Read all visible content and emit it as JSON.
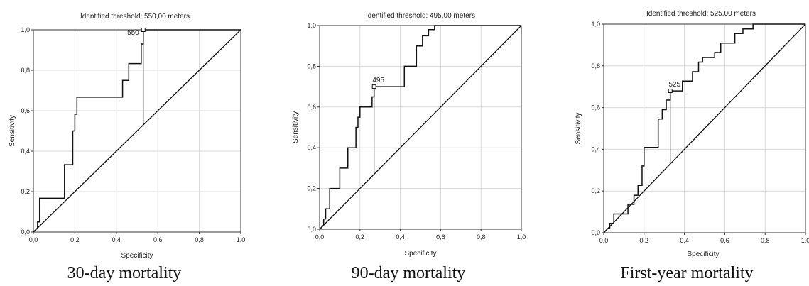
{
  "chart_data": [
    {
      "type": "line",
      "title": "Identified threshold: 550,00 meters",
      "xlabel": "Specificity",
      "ylabel": "Sensitivity",
      "caption": "30-day mortality",
      "xlim": [
        0,
        1
      ],
      "ylim": [
        0,
        1
      ],
      "xticks": [
        "0,0",
        "0,2",
        "0,4",
        "0,6",
        "0,8",
        "1,0"
      ],
      "yticks": [
        "0,0",
        "0,2",
        "0,4",
        "0,6",
        "0,8",
        "1,0"
      ],
      "grid": true,
      "threshold": {
        "label": "550",
        "x": 0.53,
        "y": 1.0
      },
      "series": [
        {
          "role": "roc",
          "x": [
            0,
            0.02,
            0.02,
            0.03,
            0.03,
            0.15,
            0.15,
            0.19,
            0.19,
            0.2,
            0.2,
            0.21,
            0.21,
            0.43,
            0.43,
            0.46,
            0.46,
            0.52,
            0.52,
            0.53,
            0.53,
            1.0
          ],
          "y": [
            0,
            0.02,
            0.05,
            0.05,
            0.167,
            0.167,
            0.333,
            0.333,
            0.5,
            0.5,
            0.583,
            0.583,
            0.667,
            0.667,
            0.75,
            0.75,
            0.833,
            0.833,
            0.93,
            0.93,
            1.0,
            1.0
          ]
        },
        {
          "role": "reference",
          "x": [
            0,
            1
          ],
          "y": [
            0,
            1
          ]
        }
      ]
    },
    {
      "type": "line",
      "title": "Identified threshold: 495,00 meters",
      "xlabel": "Specificity",
      "ylabel": "Sensitivity",
      "caption": "90-day mortality",
      "xlim": [
        0,
        1
      ],
      "ylim": [
        0,
        1
      ],
      "xticks": [
        "0,0",
        "0,2",
        "0,4",
        "0,6",
        "0,8",
        "1,0"
      ],
      "yticks": [
        "0,0",
        "0,2",
        "0,4",
        "0,6",
        "0,8",
        "1,0"
      ],
      "grid": true,
      "threshold": {
        "label": "495",
        "x": 0.27,
        "y": 0.7
      },
      "series": [
        {
          "role": "roc",
          "x": [
            0,
            0.02,
            0.02,
            0.03,
            0.03,
            0.05,
            0.05,
            0.1,
            0.1,
            0.14,
            0.14,
            0.18,
            0.18,
            0.19,
            0.19,
            0.2,
            0.2,
            0.26,
            0.26,
            0.27,
            0.27,
            0.42,
            0.42,
            0.48,
            0.48,
            0.51,
            0.51,
            0.54,
            0.54,
            0.57,
            0.57,
            1.0
          ],
          "y": [
            0,
            0.02,
            0.05,
            0.05,
            0.1,
            0.1,
            0.2,
            0.2,
            0.3,
            0.3,
            0.4,
            0.4,
            0.5,
            0.5,
            0.55,
            0.55,
            0.6,
            0.6,
            0.65,
            0.65,
            0.7,
            0.7,
            0.8,
            0.8,
            0.9,
            0.9,
            0.95,
            0.95,
            0.98,
            0.98,
            1.0,
            1.0
          ]
        },
        {
          "role": "reference",
          "x": [
            0,
            1
          ],
          "y": [
            0,
            1
          ]
        }
      ]
    },
    {
      "type": "line",
      "title": "Identified threshold: 525,00 meters",
      "xlabel": "Specificity",
      "ylabel": "Sensitivity",
      "caption": "First-year mortality",
      "xlim": [
        0,
        1
      ],
      "ylim": [
        0,
        1
      ],
      "xticks": [
        "0,0",
        "0,2",
        "0,4",
        "0,6",
        "0,8",
        "1,0"
      ],
      "yticks": [
        "0,0",
        "0,2",
        "0,4",
        "0,6",
        "0,8",
        "1,0"
      ],
      "grid": true,
      "threshold": {
        "label": "525",
        "x": 0.33,
        "y": 0.68
      },
      "series": [
        {
          "role": "roc",
          "x": [
            0,
            0.02,
            0.03,
            0.03,
            0.05,
            0.05,
            0.12,
            0.12,
            0.15,
            0.15,
            0.17,
            0.17,
            0.19,
            0.19,
            0.2,
            0.2,
            0.27,
            0.27,
            0.29,
            0.29,
            0.31,
            0.31,
            0.33,
            0.33,
            0.39,
            0.39,
            0.44,
            0.44,
            0.47,
            0.47,
            0.49,
            0.49,
            0.55,
            0.55,
            0.58,
            0.58,
            0.65,
            0.65,
            0.69,
            0.69,
            0.74,
            0.74,
            0.75,
            1.0
          ],
          "y": [
            0,
            0.02,
            0.02,
            0.045,
            0.045,
            0.09,
            0.09,
            0.136,
            0.136,
            0.18,
            0.18,
            0.227,
            0.227,
            0.32,
            0.32,
            0.409,
            0.409,
            0.545,
            0.545,
            0.59,
            0.59,
            0.636,
            0.636,
            0.68,
            0.68,
            0.727,
            0.727,
            0.772,
            0.772,
            0.818,
            0.818,
            0.84,
            0.84,
            0.864,
            0.864,
            0.909,
            0.909,
            0.955,
            0.955,
            0.977,
            0.977,
            1.0,
            1.0,
            1.0
          ]
        },
        {
          "role": "reference",
          "x": [
            0,
            1
          ],
          "y": [
            0,
            1
          ]
        }
      ]
    }
  ]
}
